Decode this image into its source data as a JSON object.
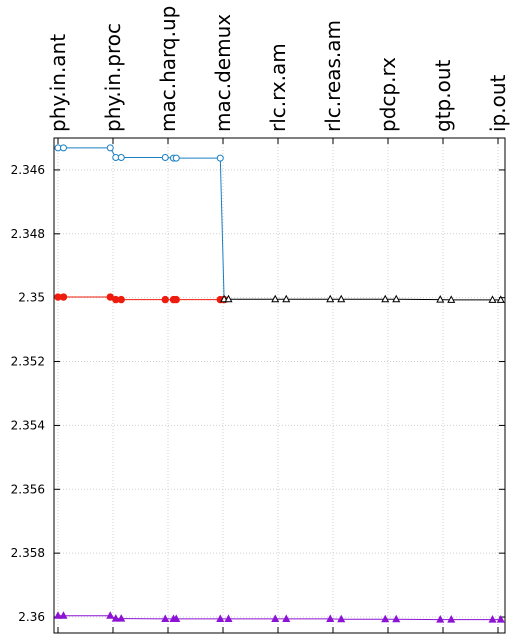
{
  "chart_data": {
    "type": "line",
    "categories": [
      "phy.in.ant",
      "phy.in.proc",
      "mac.harq.up",
      "mac.demux",
      "rlc.rx.am",
      "rlc.reas.am",
      "pdcp.rx",
      "gtp.out",
      "ip.out"
    ],
    "y_axis": {
      "inverted": true,
      "ylim": [
        2.345,
        2.3605
      ],
      "ticks": [
        "2.346",
        "2.348",
        "2.35",
        "2.352",
        "2.354",
        "2.356",
        "2.358",
        "2.36"
      ],
      "grid": true
    },
    "x_axis": {
      "position": "top",
      "grid": true
    },
    "legend": "none",
    "series": [
      {
        "color": "#1a7fc1",
        "marker": "open-circle",
        "points": [
          {
            "x": 0.0,
            "y": 2.34531
          },
          {
            "x": 0.1,
            "y": 2.34531
          },
          {
            "x": 0.95,
            "y": 2.34531
          },
          {
            "x": 1.05,
            "y": 2.34561
          },
          {
            "x": 1.15,
            "y": 2.34561
          },
          {
            "x": 1.95,
            "y": 2.34561
          },
          {
            "x": 2.1,
            "y": 2.34563
          },
          {
            "x": 2.15,
            "y": 2.34563
          },
          {
            "x": 2.95,
            "y": 2.34563
          },
          {
            "x": 3.02,
            "y": 2.35005
          }
        ]
      },
      {
        "color": "#ee1c0e",
        "marker": "filled-circle",
        "points": [
          {
            "x": 0.0,
            "y": 2.34998
          },
          {
            "x": 0.1,
            "y": 2.34998
          },
          {
            "x": 0.95,
            "y": 2.34998
          },
          {
            "x": 1.05,
            "y": 2.35006
          },
          {
            "x": 1.15,
            "y": 2.35006
          },
          {
            "x": 1.95,
            "y": 2.35006
          },
          {
            "x": 2.1,
            "y": 2.35006
          },
          {
            "x": 2.15,
            "y": 2.35006
          },
          {
            "x": 2.95,
            "y": 2.35006
          },
          {
            "x": 3.02,
            "y": 2.35006
          }
        ]
      },
      {
        "color": "#000000",
        "marker": "open-triangle",
        "points": [
          {
            "x": 3.02,
            "y": 2.35005
          },
          {
            "x": 3.1,
            "y": 2.35005
          },
          {
            "x": 3.95,
            "y": 2.35005
          },
          {
            "x": 4.15,
            "y": 2.35005
          },
          {
            "x": 4.95,
            "y": 2.35005
          },
          {
            "x": 5.15,
            "y": 2.35005
          },
          {
            "x": 5.95,
            "y": 2.35005
          },
          {
            "x": 6.15,
            "y": 2.35005
          },
          {
            "x": 6.95,
            "y": 2.35006
          },
          {
            "x": 7.15,
            "y": 2.35007
          },
          {
            "x": 7.9,
            "y": 2.35007
          },
          {
            "x": 8.05,
            "y": 2.35007
          }
        ]
      },
      {
        "color": "#8c12d4",
        "marker": "filled-triangle",
        "points": [
          {
            "x": 0.0,
            "y": 2.35996
          },
          {
            "x": 0.1,
            "y": 2.35996
          },
          {
            "x": 0.95,
            "y": 2.35996
          },
          {
            "x": 1.05,
            "y": 2.36005
          },
          {
            "x": 1.15,
            "y": 2.36005
          },
          {
            "x": 1.95,
            "y": 2.36006
          },
          {
            "x": 2.1,
            "y": 2.36006
          },
          {
            "x": 2.15,
            "y": 2.36006
          },
          {
            "x": 2.95,
            "y": 2.36006
          },
          {
            "x": 3.1,
            "y": 2.36006
          },
          {
            "x": 3.95,
            "y": 2.36006
          },
          {
            "x": 4.15,
            "y": 2.36006
          },
          {
            "x": 4.95,
            "y": 2.36006
          },
          {
            "x": 5.15,
            "y": 2.36007
          },
          {
            "x": 5.95,
            "y": 2.36007
          },
          {
            "x": 6.15,
            "y": 2.36007
          },
          {
            "x": 6.95,
            "y": 2.36008
          },
          {
            "x": 7.15,
            "y": 2.36008
          },
          {
            "x": 7.9,
            "y": 2.36008
          },
          {
            "x": 8.05,
            "y": 2.36008
          }
        ]
      }
    ]
  }
}
